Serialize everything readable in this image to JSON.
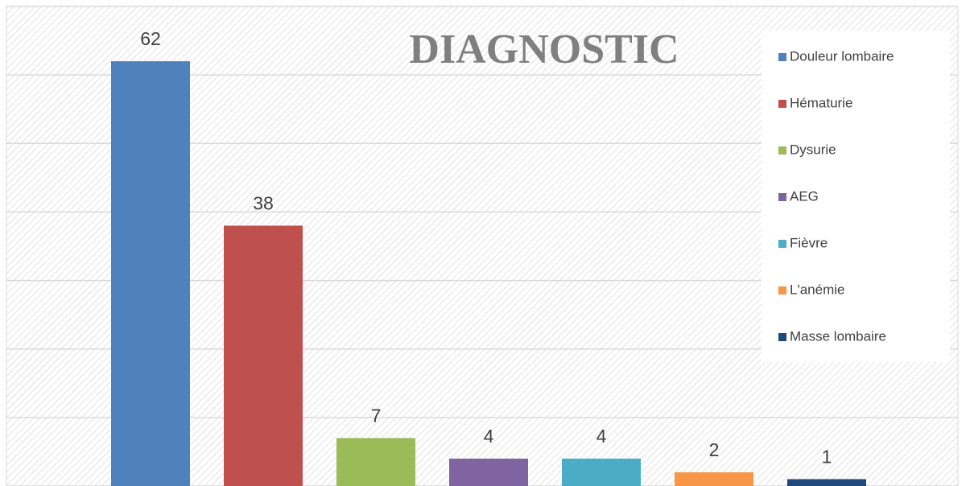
{
  "chart_data": {
    "type": "bar",
    "title": "DIAGNOSTIC",
    "series": [
      {
        "name": "Douleur lombaire",
        "color": "#4f81bd",
        "values": [
          62
        ]
      },
      {
        "name": "Hématurie",
        "color": "#c0504d",
        "values": [
          38
        ]
      },
      {
        "name": "Dysurie",
        "color": "#9bbb59",
        "values": [
          7
        ]
      },
      {
        "name": "AEG",
        "color": "#8064a2",
        "values": [
          4
        ]
      },
      {
        "name": "Fièvre",
        "color": "#4bacc6",
        "values": [
          4
        ]
      },
      {
        "name": "L'anémie",
        "color": "#f79646",
        "values": [
          2
        ]
      },
      {
        "name": "Masse lombaire",
        "color": "#1f497d",
        "values": [
          1
        ]
      }
    ],
    "ylim": [
      0,
      70
    ],
    "yticks": [
      0,
      10,
      20,
      30,
      40,
      50,
      60,
      70
    ],
    "grid": true,
    "legend": "right"
  }
}
